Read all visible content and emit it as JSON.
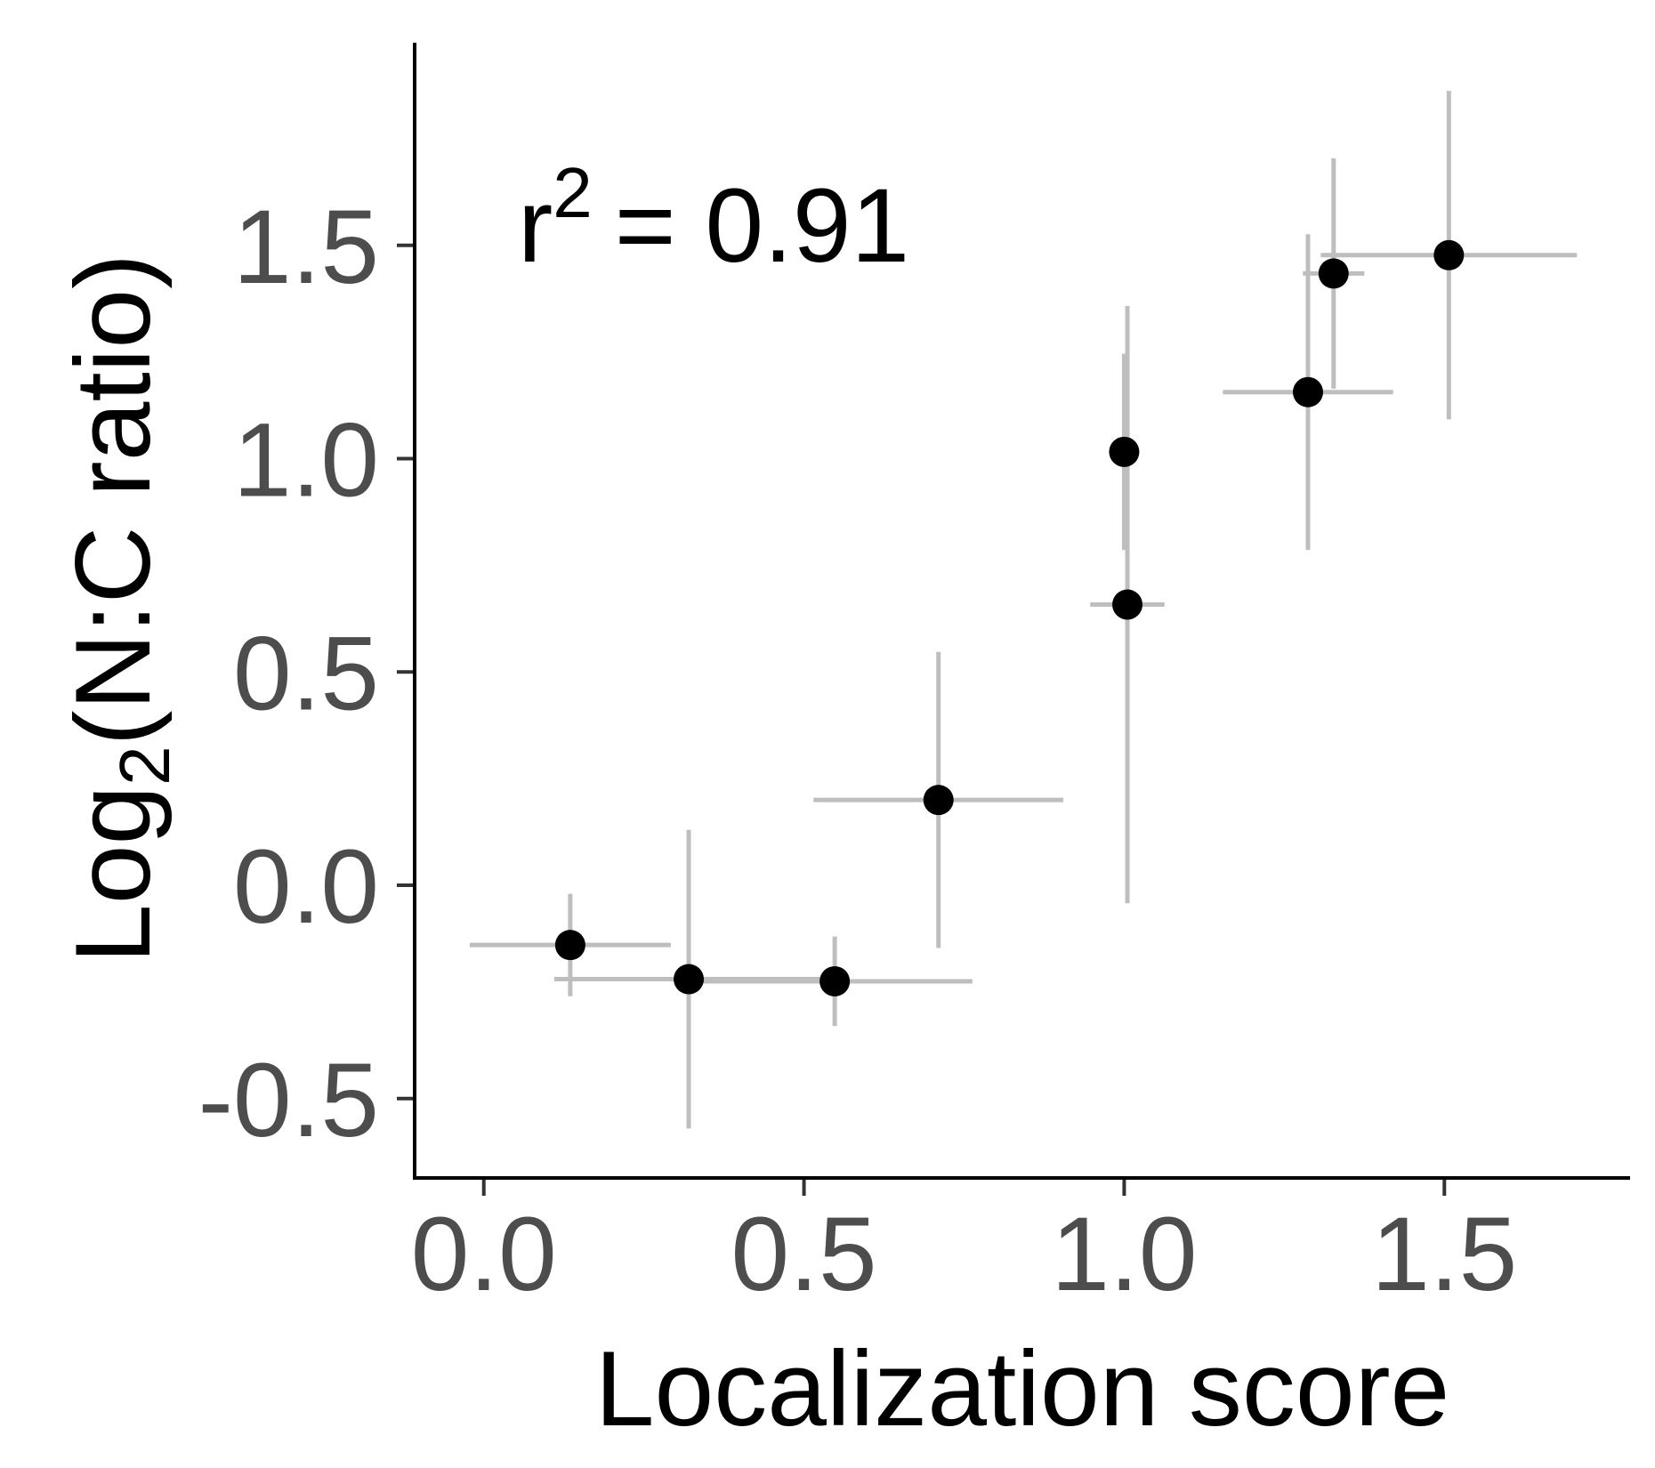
{
  "chart_data": {
    "type": "scatter",
    "x_label": "Localization score",
    "y_label": [
      "Log",
      "2",
      "(N:C ratio)"
    ],
    "annotation": [
      "r",
      "2",
      "= 0.91"
    ],
    "x": [
      0.135,
      0.32,
      0.548,
      0.71,
      1.0,
      1.005,
      1.287,
      1.327,
      1.507
    ],
    "values": [
      -0.14,
      -0.22,
      -0.225,
      0.2,
      1.016,
      0.658,
      1.156,
      1.434,
      1.477
    ],
    "xerr": [
      0.157,
      0.21,
      0.215,
      0.195,
      0.01,
      0.058,
      0.133,
      0.048,
      0.2
    ],
    "yerr": [
      0.12,
      0.35,
      0.105,
      0.347,
      0.23,
      0.7,
      0.37,
      0.27,
      0.385
    ],
    "color": "#000000",
    "error_color": "#bebebe",
    "xlim": [
      -0.108,
      1.79
    ],
    "ylim": [
      -0.686,
      1.975
    ],
    "xticks": [
      {
        "value": 0,
        "label": "0.0"
      },
      0.5,
      {
        "value": 1,
        "label": "1.0"
      },
      1.5
    ],
    "yticks": [
      -0.5,
      {
        "value": 0,
        "label": "0.0"
      },
      0.5,
      {
        "value": 1,
        "label": "1.0"
      },
      1.5
    ],
    "grid": false
  }
}
